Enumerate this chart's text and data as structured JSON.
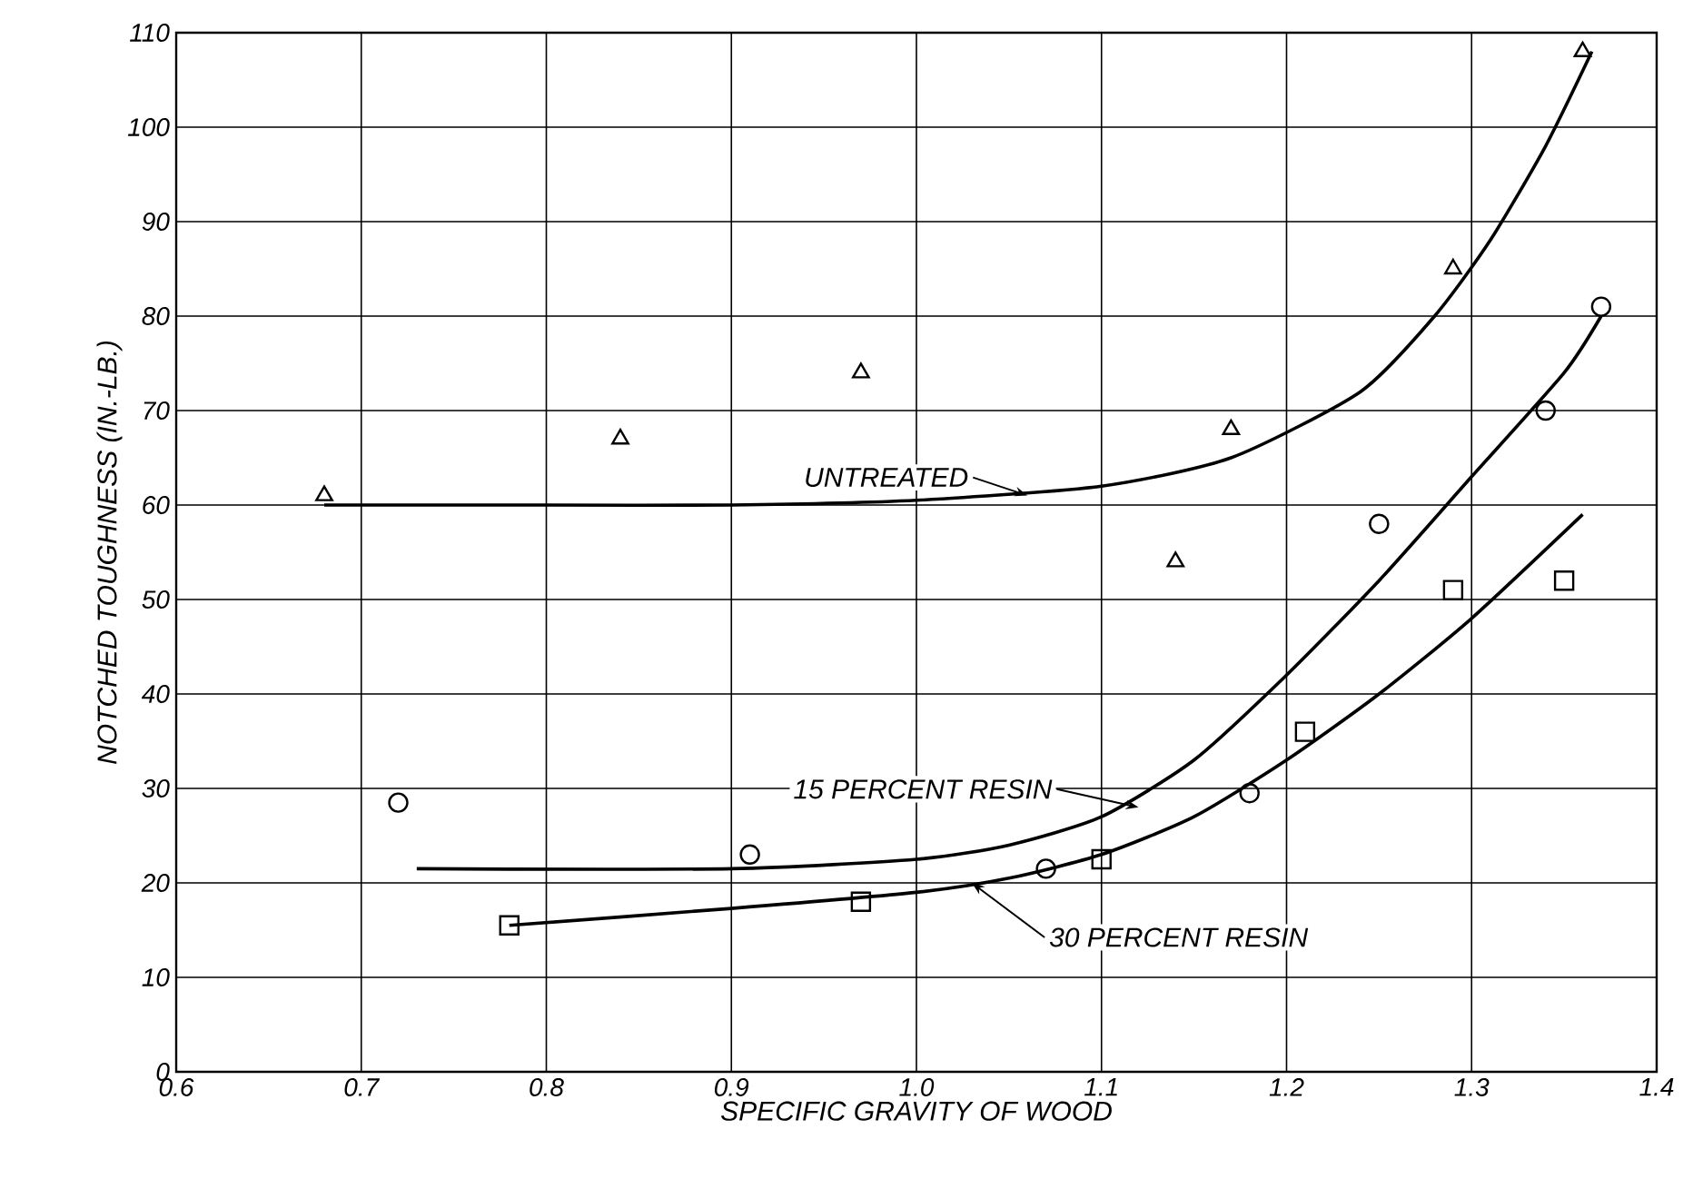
{
  "chart_data": {
    "type": "scatter",
    "xlabel": "SPECIFIC GRAVITY OF WOOD",
    "ylabel": "NOTCHED TOUGHNESS (IN.-LB.)",
    "xlim": [
      0.6,
      1.4
    ],
    "ylim": [
      0,
      110
    ],
    "xticks": [
      0.6,
      0.7,
      0.8,
      0.9,
      {
        "value": 1.0,
        "label": "1.0"
      },
      1.1,
      1.2,
      1.3,
      1.4
    ],
    "yticks": [
      0,
      10,
      20,
      30,
      40,
      50,
      60,
      70,
      80,
      90,
      100,
      110
    ],
    "grid": true,
    "series": [
      {
        "marker": "triangle",
        "color": "#000000",
        "x": [
          0.68,
          0.84,
          0.97,
          1.14,
          1.17,
          1.29,
          1.36
        ],
        "values": [
          61,
          67,
          74,
          54,
          68,
          85,
          108
        ]
      },
      {
        "marker": "circle",
        "color": "#000000",
        "x": [
          0.72,
          0.91,
          1.07,
          1.18,
          1.25,
          1.34,
          1.37
        ],
        "values": [
          28.5,
          23,
          21.5,
          29.5,
          58,
          70,
          81
        ]
      },
      {
        "marker": "square",
        "color": "#000000",
        "x": [
          0.78,
          0.97,
          1.1,
          1.21,
          1.29,
          1.35
        ],
        "values": [
          15.5,
          18,
          22.5,
          36,
          51,
          52
        ]
      },
      {
        "type": "line",
        "marker": "none",
        "color": "#000000",
        "x": [
          0.68,
          0.8,
          0.9,
          1.0,
          1.1,
          1.17,
          1.24,
          1.28,
          1.31,
          1.34,
          1.365
        ],
        "values": [
          60,
          60,
          60,
          60.5,
          62,
          65,
          72,
          80,
          88,
          98,
          108
        ]
      },
      {
        "type": "line",
        "marker": "none",
        "color": "#000000",
        "x": [
          0.73,
          0.9,
          1.0,
          1.05,
          1.1,
          1.15,
          1.2,
          1.25,
          1.3,
          1.35,
          1.37
        ],
        "values": [
          21.5,
          21.5,
          22.5,
          24,
          27,
          33,
          42,
          52,
          63,
          74,
          80
        ]
      },
      {
        "type": "line",
        "marker": "none",
        "color": "#000000",
        "x": [
          0.78,
          0.9,
          1.0,
          1.05,
          1.1,
          1.15,
          1.2,
          1.25,
          1.3,
          1.36
        ],
        "values": [
          15.5,
          17.3,
          19,
          20.5,
          23,
          27,
          33,
          40,
          48,
          59
        ]
      }
    ],
    "annotations": [
      {
        "text": "UNTREATED",
        "x": 1.06,
        "y": 61
      },
      {
        "text": "15 PERCENT RESIN",
        "x": 1.12,
        "y": 28
      },
      {
        "text": "30 PERCENT RESIN",
        "x": 1.03,
        "y": 20
      }
    ]
  }
}
